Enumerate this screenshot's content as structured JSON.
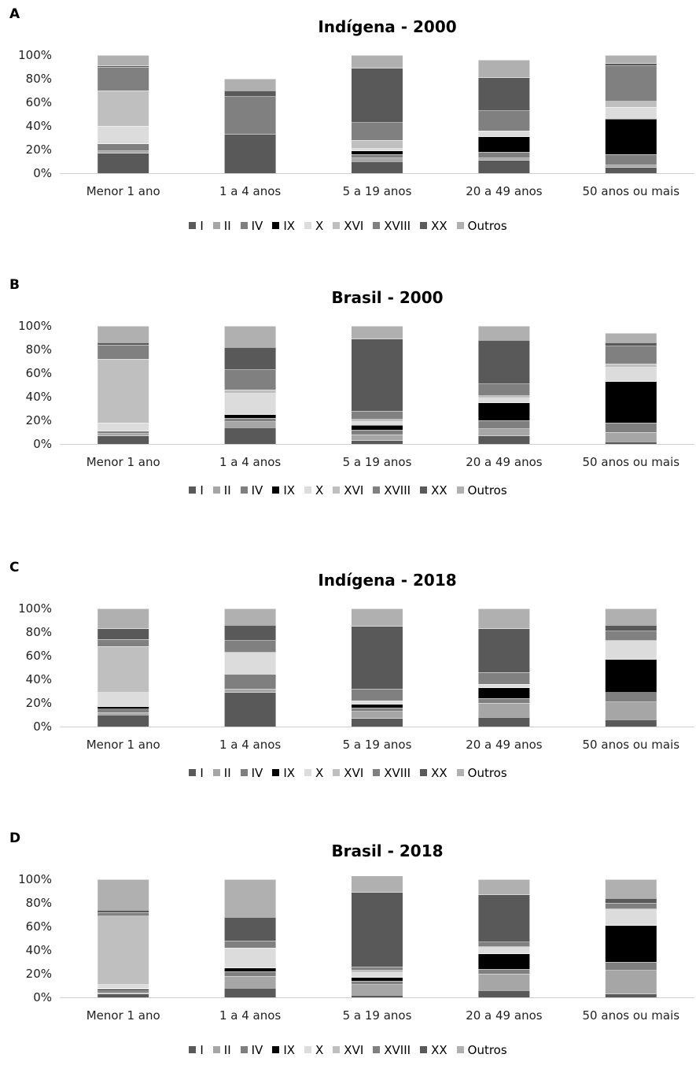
{
  "legend": [
    {
      "label": "I",
      "color": "#595959"
    },
    {
      "label": "II",
      "color": "#a6a6a6"
    },
    {
      "label": "IV",
      "color": "#7f7f7f"
    },
    {
      "label": "IX",
      "color": "#000000"
    },
    {
      "label": "X",
      "color": "#dcdcdc"
    },
    {
      "label": "XVI",
      "color": "#bfbfbf"
    },
    {
      "label": "XVIII",
      "color": "#808080"
    },
    {
      "label": "XX",
      "color": "#595959"
    },
    {
      "label": "Outros",
      "color": "#b0b0b0"
    }
  ],
  "chart_data": [
    {
      "panel": "A",
      "type": "bar",
      "stacked": true,
      "title": "Indígena - 2000",
      "categories": [
        "Menor 1 ano",
        "1 a 4 anos",
        "5 a 19 anos",
        "20 a 49 anos",
        "50 anos ou mais"
      ],
      "yticks": [
        "0%",
        "20%",
        "40%",
        "60%",
        "80%",
        "100%"
      ],
      "ylim": [
        0,
        100
      ],
      "series": [
        {
          "name": "I",
          "values": [
            17,
            33,
            10,
            11,
            5
          ]
        },
        {
          "name": "II",
          "values": [
            2,
            0,
            3,
            2,
            2
          ]
        },
        {
          "name": "IV",
          "values": [
            6,
            0,
            3,
            5,
            9
          ]
        },
        {
          "name": "IX",
          "values": [
            0,
            0,
            3,
            13,
            30
          ]
        },
        {
          "name": "X",
          "values": [
            15,
            0,
            2,
            5,
            10
          ]
        },
        {
          "name": "XVI",
          "values": [
            30,
            0,
            7,
            0,
            5
          ]
        },
        {
          "name": "XVIII",
          "values": [
            20,
            32,
            15,
            17,
            30
          ]
        },
        {
          "name": "XX",
          "values": [
            1,
            5,
            46,
            28,
            2
          ]
        },
        {
          "name": "Outros",
          "values": [
            9,
            10,
            11,
            15,
            7
          ]
        }
      ]
    },
    {
      "panel": "B",
      "type": "bar",
      "stacked": true,
      "title": "Brasil - 2000",
      "categories": [
        "Menor 1 ano",
        "1 a 4 anos",
        "5 a 19 anos",
        "20 a 49 anos",
        "50 anos ou mais"
      ],
      "yticks": [
        "0%",
        "20%",
        "40%",
        "60%",
        "80%",
        "100%"
      ],
      "ylim": [
        0,
        100
      ],
      "series": [
        {
          "name": "I",
          "values": [
            7,
            14,
            3,
            7,
            2
          ]
        },
        {
          "name": "II",
          "values": [
            2,
            5,
            5,
            6,
            8
          ]
        },
        {
          "name": "IV",
          "values": [
            2,
            3,
            4,
            7,
            8
          ]
        },
        {
          "name": "IX",
          "values": [
            0,
            3,
            4,
            15,
            35
          ]
        },
        {
          "name": "X",
          "values": [
            7,
            18,
            3,
            4,
            12
          ]
        },
        {
          "name": "XVI",
          "values": [
            54,
            3,
            2,
            2,
            3
          ]
        },
        {
          "name": "XVIII",
          "values": [
            12,
            17,
            7,
            10,
            15
          ]
        },
        {
          "name": "XX",
          "values": [
            2,
            19,
            61,
            37,
            3
          ]
        },
        {
          "name": "Outros",
          "values": [
            14,
            18,
            11,
            12,
            8
          ]
        }
      ]
    },
    {
      "panel": "C",
      "type": "bar",
      "stacked": true,
      "title": "Indígena - 2018",
      "categories": [
        "Menor 1 ano",
        "1 a 4 anos",
        "5 a 19 anos",
        "20 a 49 anos",
        "50 anos ou mais"
      ],
      "yticks": [
        "0%",
        "20%",
        "40%",
        "60%",
        "80%",
        "100%"
      ],
      "ylim": [
        0,
        100
      ],
      "series": [
        {
          "name": "I",
          "values": [
            10,
            29,
            7,
            8,
            6
          ]
        },
        {
          "name": "II",
          "values": [
            2,
            3,
            6,
            12,
            15
          ]
        },
        {
          "name": "IV",
          "values": [
            3,
            11,
            3,
            4,
            8
          ]
        },
        {
          "name": "IX",
          "values": [
            2,
            1,
            3,
            9,
            28
          ]
        },
        {
          "name": "X",
          "values": [
            12,
            19,
            3,
            3,
            16
          ]
        },
        {
          "name": "XVI",
          "values": [
            39,
            0,
            0,
            0,
            0
          ]
        },
        {
          "name": "XVIII",
          "values": [
            6,
            10,
            10,
            10,
            8
          ]
        },
        {
          "name": "XX",
          "values": [
            9,
            13,
            53,
            37,
            5
          ]
        },
        {
          "name": "Outros",
          "values": [
            17,
            14,
            15,
            17,
            14
          ]
        }
      ]
    },
    {
      "panel": "D",
      "type": "bar",
      "stacked": true,
      "title": "Brasil - 2018",
      "categories": [
        "Menor 1 ano",
        "1 a 4 anos",
        "5 a 19 anos",
        "20 a 49 anos",
        "50 anos ou mais"
      ],
      "yticks": [
        "0%",
        "20%",
        "40%",
        "60%",
        "80%",
        "100%"
      ],
      "ylim": [
        0,
        100
      ],
      "series": [
        {
          "name": "I",
          "values": [
            3,
            8,
            2,
            6,
            3
          ]
        },
        {
          "name": "II",
          "values": [
            1,
            10,
            9,
            14,
            20
          ]
        },
        {
          "name": "IV",
          "values": [
            2,
            4,
            3,
            4,
            7
          ]
        },
        {
          "name": "IX",
          "values": [
            1,
            3,
            3,
            13,
            31
          ]
        },
        {
          "name": "X",
          "values": [
            4,
            17,
            4,
            6,
            14
          ]
        },
        {
          "name": "XVI",
          "values": [
            58,
            0,
            2,
            0,
            0
          ]
        },
        {
          "name": "XVIII",
          "values": [
            3,
            6,
            3,
            4,
            5
          ]
        },
        {
          "name": "XX",
          "values": [
            2,
            20,
            63,
            40,
            4
          ]
        },
        {
          "name": "Outros",
          "values": [
            26,
            32,
            14,
            13,
            16
          ]
        }
      ]
    }
  ]
}
